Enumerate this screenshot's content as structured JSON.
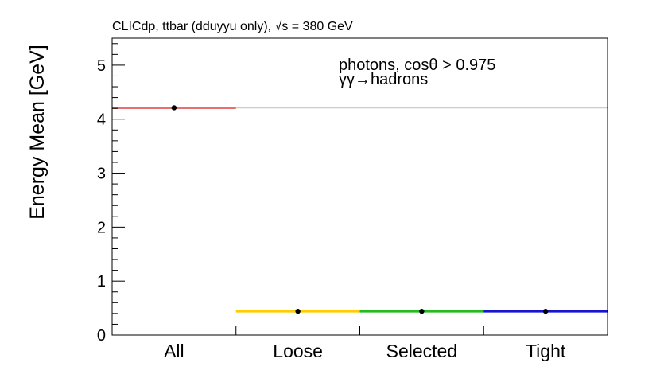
{
  "chart_data": {
    "type": "bar",
    "header": "CLICdp, ttbar (dduyyu only), √s = 380 GeV",
    "ylabel": "Energy Mean [GeV]",
    "xlabel": "",
    "annotation_lines": [
      "photons, cosθ > 0.975",
      "γγ→hadrons"
    ],
    "ylim": [
      0,
      5.5
    ],
    "yticks": [
      0,
      1,
      2,
      3,
      4,
      5
    ],
    "categories": [
      "All",
      "Loose",
      "Selected",
      "Tight"
    ],
    "values": [
      4.21,
      0.44,
      0.44,
      0.44
    ],
    "colors": [
      "#e87070",
      "#ffcc00",
      "#22bb22",
      "#1515cc"
    ],
    "reference_value": 4.21,
    "reference_color": "#cccccc",
    "marker_color": "#000000",
    "grid": false,
    "legend": "none"
  }
}
